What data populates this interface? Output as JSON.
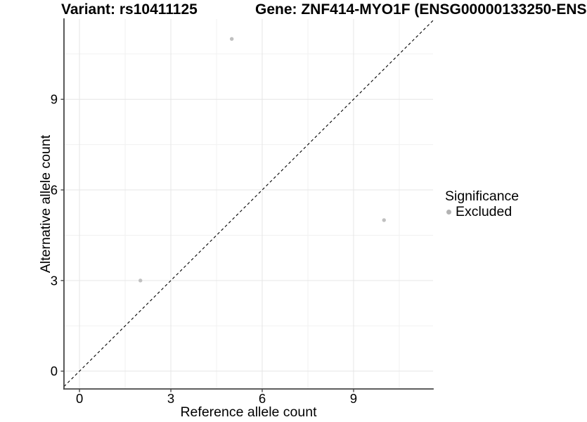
{
  "chart_data": {
    "type": "scatter",
    "titles": {
      "left": "Variant: rs10411125",
      "right": "Gene: ZNF414-MYO1F (ENSG00000133250-ENS"
    },
    "xlabel": "Reference allele count",
    "ylabel": "Alternative allele count",
    "xlim": [
      -0.51,
      11.61
    ],
    "ylim": [
      -0.59,
      11.66
    ],
    "x_ticks": [
      0,
      3,
      6,
      9
    ],
    "y_ticks": [
      0,
      3,
      6,
      9
    ],
    "x_minor_ticks": [
      1.5,
      4.5,
      7.5,
      10.5
    ],
    "y_minor_ticks": [
      1.5,
      4.5,
      7.5,
      10.5
    ],
    "grid": true,
    "points": [
      {
        "x": 2,
        "y": 3,
        "series": "Excluded"
      },
      {
        "x": 5,
        "y": 11,
        "series": "Excluded"
      },
      {
        "x": 10,
        "y": 5,
        "series": "Excluded"
      }
    ],
    "abline": {
      "slope": 1,
      "intercept": 0,
      "style": "dashed"
    },
    "legend": {
      "title": "Significance",
      "position": "right",
      "items": [
        {
          "label": "Excluded",
          "color": "#b3b3b3"
        }
      ]
    },
    "colors": {
      "point": "#c0c0c0",
      "legend_dot": "#b3b3b3",
      "axis_line": "#474747",
      "grid_major": "#e6e6e6",
      "grid_minor": "#f1f1f1",
      "dashed_line": "#000000",
      "text": "#000000"
    }
  }
}
